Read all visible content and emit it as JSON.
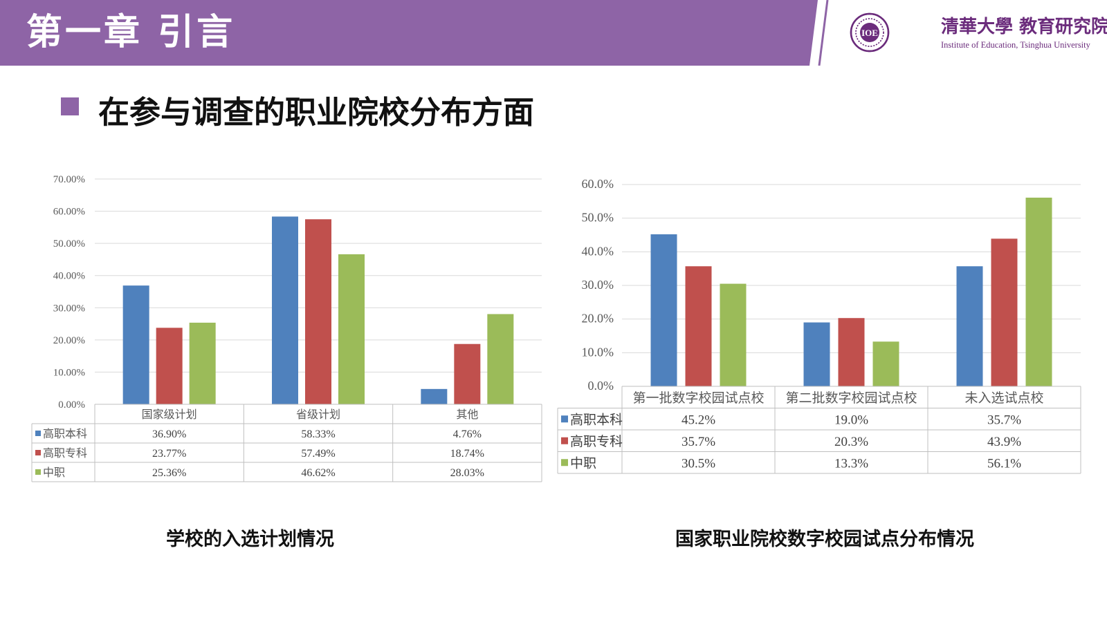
{
  "header": {
    "chapter_title": "第一章  引言",
    "institution_cn": "清華大學 教育研究院",
    "institution_en": "Institute of Education, Tsinghua University",
    "band_color": "#8e64a6"
  },
  "section": {
    "heading": "在参与调查的职业院校分布方面",
    "bullet_color": "#8e64a6"
  },
  "captions": {
    "left": "学校的入选计划情况",
    "right": "国家职业院校数字校园试点分布情况"
  },
  "chart_data": [
    {
      "type": "bar",
      "categories": [
        "国家级计划",
        "省级计划",
        "其他"
      ],
      "series": [
        {
          "name": "高职本科",
          "color": "#4f81bd",
          "values": [
            36.9,
            58.33,
            4.76
          ],
          "labels": [
            "36.90%",
            "58.33%",
            "4.76%"
          ]
        },
        {
          "name": "高职专科",
          "color": "#c0504d",
          "values": [
            23.77,
            57.49,
            18.74
          ],
          "labels": [
            "23.77%",
            "57.49%",
            "18.74%"
          ]
        },
        {
          "name": "中职",
          "color": "#9bbb59",
          "values": [
            25.36,
            46.62,
            28.03
          ],
          "labels": [
            "25.36%",
            "46.62%",
            "28.03%"
          ]
        }
      ],
      "yticks": [
        "0.00%",
        "10.00%",
        "20.00%",
        "30.00%",
        "40.00%",
        "50.00%",
        "60.00%",
        "70.00%"
      ],
      "ylim": [
        0,
        70
      ],
      "grid": true,
      "legend": "data-table"
    },
    {
      "type": "bar",
      "categories": [
        "第一批数字校园试点校",
        "第二批数字校园试点校",
        "未入选试点校"
      ],
      "series": [
        {
          "name": "高职本科",
          "color": "#4f81bd",
          "values": [
            45.2,
            19.0,
            35.7
          ],
          "labels": [
            "45.2%",
            "19.0%",
            "35.7%"
          ]
        },
        {
          "name": "高职专科",
          "color": "#c0504d",
          "values": [
            35.7,
            20.3,
            43.9
          ],
          "labels": [
            "35.7%",
            "20.3%",
            "43.9%"
          ]
        },
        {
          "name": "中职",
          "color": "#9bbb59",
          "values": [
            30.5,
            13.3,
            56.1
          ],
          "labels": [
            "30.5%",
            "13.3%",
            "56.1%"
          ]
        }
      ],
      "yticks": [
        "0.0%",
        "10.0%",
        "20.0%",
        "30.0%",
        "40.0%",
        "50.0%",
        "60.0%"
      ],
      "ylim": [
        0,
        60
      ],
      "grid": true,
      "legend": "data-table"
    }
  ]
}
